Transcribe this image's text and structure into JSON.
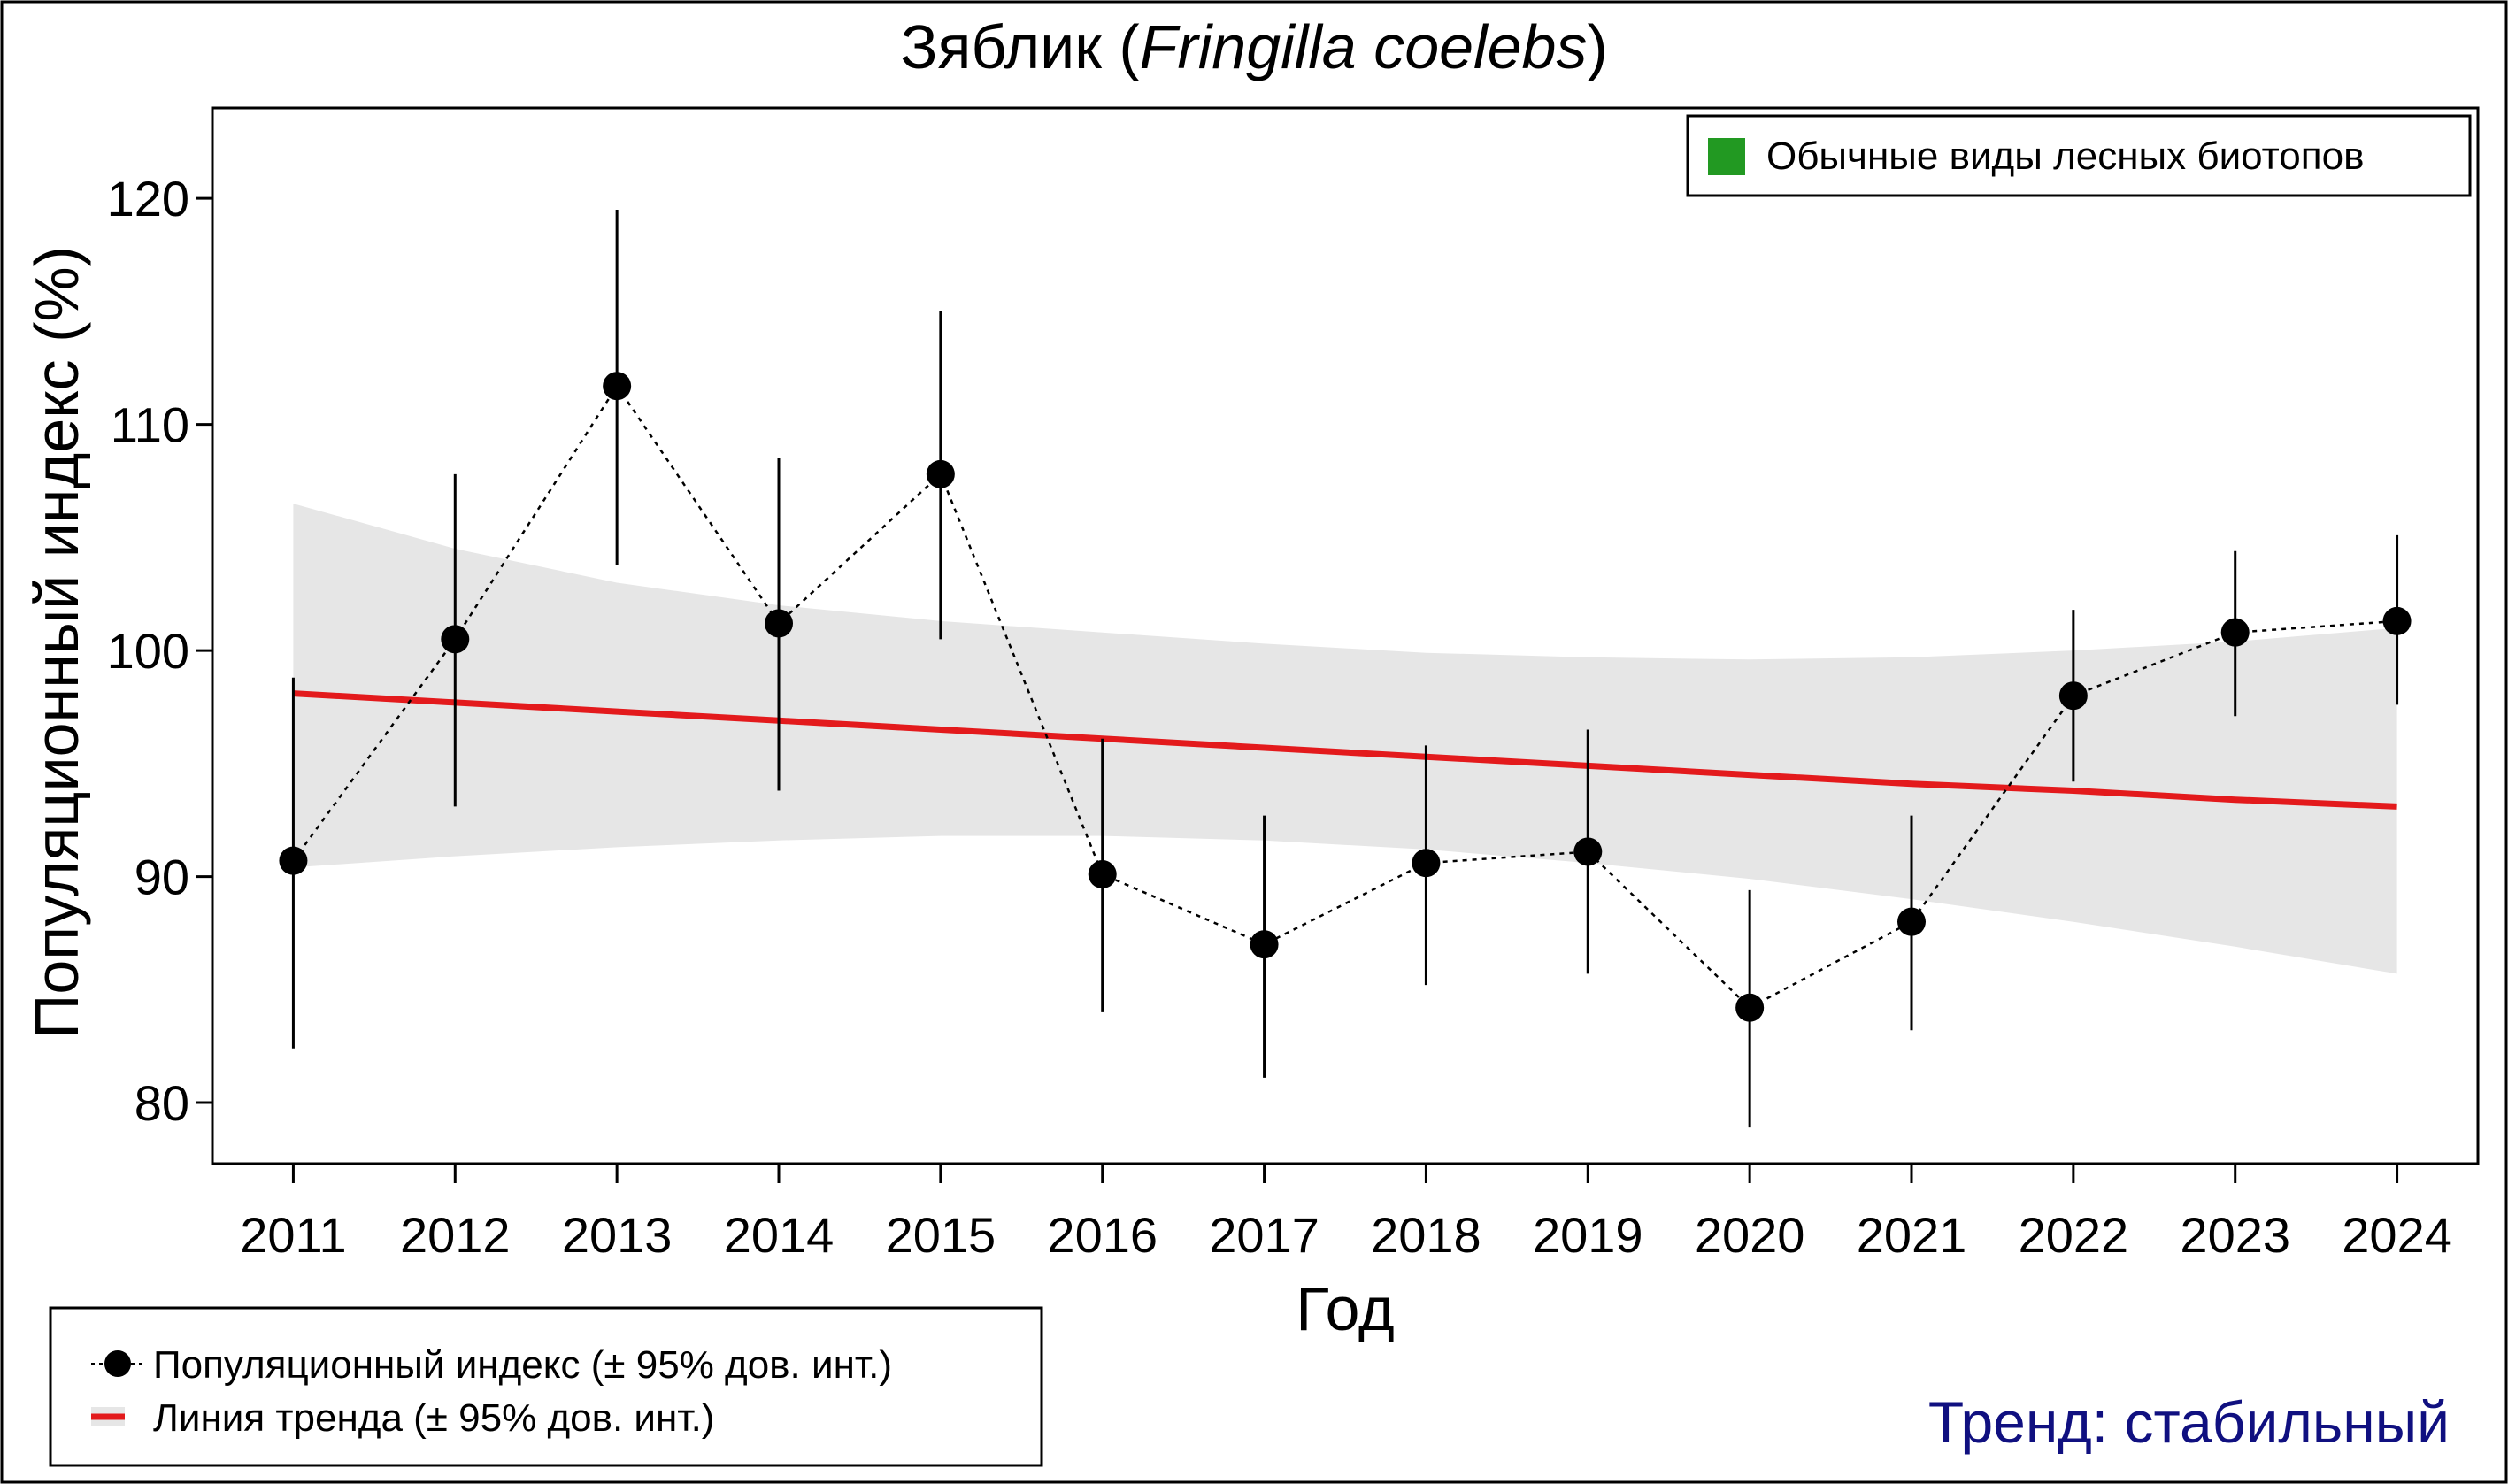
{
  "chart_data": {
    "type": "line",
    "title": {
      "prefix": "Зяблик (",
      "italic": "Fringilla coelebs",
      "suffix": ")"
    },
    "xlabel": "Год",
    "ylabel": "Популяционный индекс (%)",
    "x": [
      2011,
      2012,
      2013,
      2014,
      2015,
      2016,
      2017,
      2018,
      2019,
      2020,
      2021,
      2022,
      2023,
      2024
    ],
    "y_ticks": [
      80,
      90,
      100,
      110,
      120
    ],
    "ylim": [
      77.3,
      124.0
    ],
    "xlim": [
      2010.5,
      2024.5
    ],
    "grid": false,
    "series": [
      {
        "name": "Популяционный индекс (± 95% дов. инт.)",
        "style": "dotted line with points and error bars",
        "color": "#000000",
        "values": [
          90.7,
          100.5,
          111.7,
          101.2,
          107.8,
          90.1,
          87.0,
          90.6,
          91.1,
          84.2,
          88.0,
          98.0,
          100.8,
          101.3
        ],
        "ci_low": [
          82.4,
          93.1,
          103.8,
          93.8,
          100.5,
          84.0,
          81.1,
          85.2,
          85.7,
          78.9,
          83.2,
          94.2,
          97.1,
          97.6
        ],
        "ci_high": [
          98.8,
          107.8,
          119.5,
          108.5,
          115.0,
          96.1,
          92.7,
          95.8,
          96.5,
          89.4,
          92.7,
          101.8,
          104.4,
          105.1
        ]
      },
      {
        "name": "Линия тренда (± 95% дов. инт.)",
        "style": "linear trend with confidence band",
        "color": "#e31a1c",
        "band_color": "#e6e6e6",
        "values": [
          98.1,
          97.7,
          97.3,
          96.9,
          96.5,
          96.1,
          95.7,
          95.3,
          94.9,
          94.5,
          94.1,
          93.8,
          93.4,
          93.1
        ],
        "band_low": [
          90.4,
          90.9,
          91.3,
          91.6,
          91.8,
          91.8,
          91.6,
          91.2,
          90.6,
          89.9,
          89.0,
          88.0,
          86.9,
          85.7
        ],
        "band_high": [
          106.5,
          104.5,
          103.0,
          102.0,
          101.3,
          100.8,
          100.3,
          99.9,
          99.7,
          99.6,
          99.7,
          100.0,
          100.4,
          101.0
        ]
      }
    ],
    "category_legend": {
      "label": "Обычные виды лесных биотопов",
      "color": "#229922",
      "placement": "top-right"
    },
    "series_legend_placement": "bottom-left",
    "trend_summary": "Тренд: стабильный",
    "trend_summary_color": "#101080"
  }
}
